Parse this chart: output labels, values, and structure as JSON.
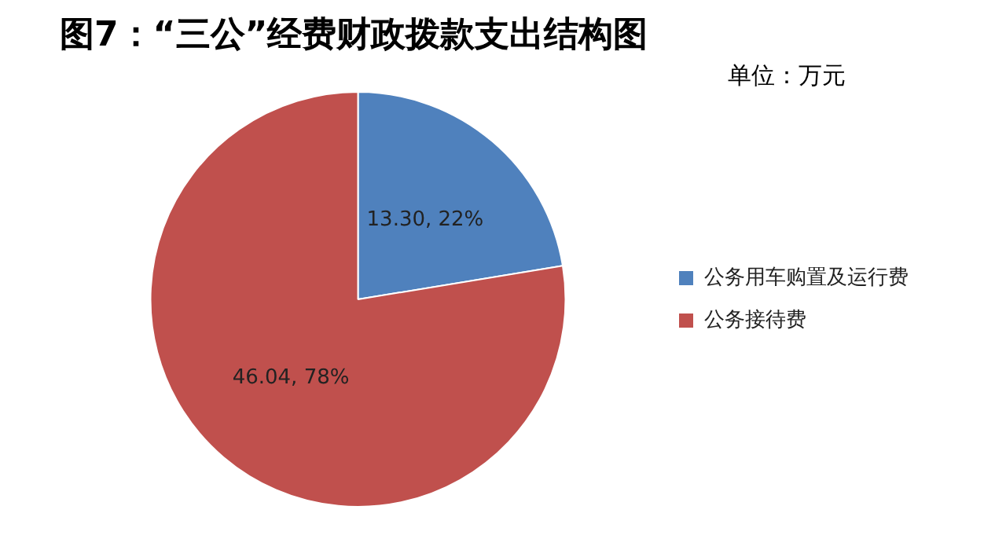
{
  "chart_data": {
    "type": "pie",
    "title": "图7：“三公”经费财政拨款支出结构图",
    "subtitle": "单位：万元",
    "categories": [
      "公务用车购置及运行费",
      "公务接待费"
    ],
    "values": [
      13.3,
      46.04
    ],
    "colors": [
      "#4f81bd",
      "#c0504d"
    ],
    "value_labels": [
      "13.30, 22%",
      "46.04, 78%"
    ],
    "legend": "right"
  }
}
